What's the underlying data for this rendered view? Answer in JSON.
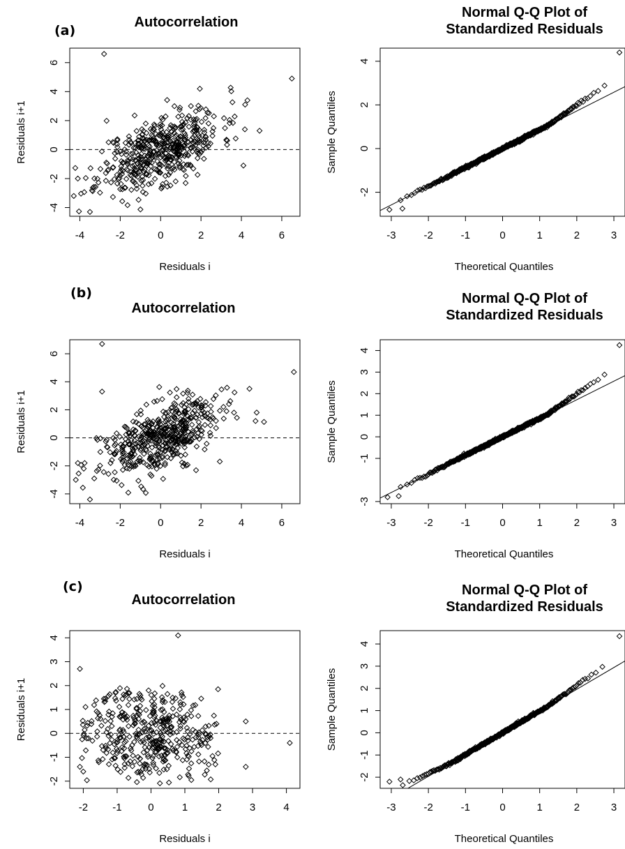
{
  "panels": [
    {
      "label": "(a)"
    },
    {
      "label": "(b)"
    },
    {
      "label": "(c)"
    }
  ],
  "chart_data": [
    {
      "id": "a-autocorrelation",
      "type": "scatter",
      "panel": "(a)",
      "title": "Autocorrelation",
      "xlabel": "Residuals i",
      "ylabel": "Residuals i+1",
      "xlim": [
        -4.5,
        6.9
      ],
      "ylim": [
        -4.6,
        7.0
      ],
      "xticks": [
        -4,
        -2,
        0,
        2,
        4,
        6
      ],
      "yticks": [
        -4,
        -2,
        0,
        2,
        4,
        6
      ],
      "hline": 0,
      "gen": {
        "kind": "autocorr",
        "n": 500,
        "seed": 11,
        "rho": 0.55,
        "sd": 1.5,
        "xmin": -4.3,
        "xmax": 6.6
      },
      "extra_points": [
        [
          -2.8,
          6.6
        ],
        [
          6.5,
          4.9
        ],
        [
          4.9,
          1.3
        ],
        [
          4.3,
          3.4
        ],
        [
          -4.1,
          -2.0
        ],
        [
          -4.3,
          -3.2
        ],
        [
          -3.5,
          -4.3
        ],
        [
          4.1,
          -1.1
        ]
      ]
    },
    {
      "id": "a-qq",
      "type": "scatter",
      "panel": "(a)",
      "title": "Normal Q-Q Plot of Standardized Residuals",
      "xlabel": "Theoretical Quantiles",
      "ylabel": "Sample Quantiles",
      "xlim": [
        -3.3,
        3.3
      ],
      "ylim": [
        -3.1,
        4.6
      ],
      "xticks": [
        -3,
        -2,
        -1,
        0,
        1,
        2,
        3
      ],
      "yticks": [
        -2,
        0,
        2,
        4
      ],
      "refline": {
        "slope": 0.86,
        "intercept": 0.0
      },
      "gen": {
        "kind": "qq",
        "n": 500,
        "seed": 5,
        "tail_low": 1.0,
        "tail_high": 1.0,
        "noise": 0.03
      },
      "extra_points": [
        [
          3.15,
          4.4
        ],
        [
          -3.05,
          -2.8
        ],
        [
          -2.7,
          -2.75
        ]
      ]
    },
    {
      "id": "b-autocorrelation",
      "type": "scatter",
      "panel": "(b)",
      "title": "Autocorrelation",
      "xlabel": "Residuals i",
      "ylabel": "Residuals i+1",
      "xlim": [
        -4.5,
        6.9
      ],
      "ylim": [
        -4.7,
        7.0
      ],
      "xticks": [
        -4,
        -2,
        0,
        2,
        4,
        6
      ],
      "yticks": [
        -4,
        -2,
        0,
        2,
        4,
        6
      ],
      "hline": 0,
      "gen": {
        "kind": "autocorr",
        "n": 500,
        "seed": 23,
        "rho": 0.55,
        "sd": 1.5,
        "xmin": -4.3,
        "xmax": 6.6
      },
      "extra_points": [
        [
          -2.9,
          6.7
        ],
        [
          6.6,
          4.7
        ],
        [
          4.7,
          1.2
        ],
        [
          4.4,
          3.5
        ],
        [
          -4.1,
          -1.8
        ],
        [
          -4.2,
          -3.0
        ],
        [
          -3.5,
          -4.4
        ],
        [
          -2.9,
          3.3
        ]
      ]
    },
    {
      "id": "b-qq",
      "type": "scatter",
      "panel": "(b)",
      "title": "Normal Q-Q Plot of Standardized Residuals",
      "xlabel": "Theoretical Quantiles",
      "ylabel": "Sample Quantiles",
      "xlim": [
        -3.3,
        3.3
      ],
      "ylim": [
        -3.1,
        4.5
      ],
      "xticks": [
        -3,
        -2,
        -1,
        0,
        1,
        2,
        3
      ],
      "yticks": [
        -3,
        -1,
        0,
        1,
        2,
        3,
        4
      ],
      "refline": {
        "slope": 0.86,
        "intercept": 0.0
      },
      "gen": {
        "kind": "qq",
        "n": 500,
        "seed": 9,
        "tail_low": 1.0,
        "tail_high": 1.0,
        "noise": 0.03
      },
      "extra_points": [
        [
          3.15,
          4.25
        ],
        [
          -3.1,
          -2.8
        ],
        [
          -2.8,
          -2.75
        ]
      ]
    },
    {
      "id": "c-autocorrelation",
      "type": "scatter",
      "panel": "(c)",
      "title": "Autocorrelation",
      "xlabel": "Residuals i",
      "ylabel": "Residuals i+1",
      "xlim": [
        -2.4,
        4.4
      ],
      "ylim": [
        -2.3,
        4.3
      ],
      "xticks": [
        -2,
        -1,
        0,
        1,
        2,
        3,
        4
      ],
      "yticks": [
        -2,
        -1,
        0,
        1,
        2,
        3,
        4
      ],
      "hline": 0,
      "gen": {
        "kind": "autocorr",
        "n": 420,
        "seed": 37,
        "rho": 0.0,
        "sd": 0.95,
        "xmin": -2.1,
        "xmax": 2.0
      },
      "extra_points": [
        [
          0.8,
          4.1
        ],
        [
          4.1,
          -0.4
        ],
        [
          2.8,
          0.5
        ],
        [
          2.8,
          -1.4
        ],
        [
          -2.1,
          2.7
        ],
        [
          -2.0,
          -1.6
        ],
        [
          -2.1,
          -1.4
        ]
      ]
    },
    {
      "id": "c-qq",
      "type": "scatter",
      "panel": "(c)",
      "title": "Normal Q-Q Plot of Standardized Residuals",
      "xlabel": "Theoretical Quantiles",
      "ylabel": "Sample Quantiles",
      "xlim": [
        -3.3,
        3.3
      ],
      "ylim": [
        -2.5,
        4.6
      ],
      "xticks": [
        -3,
        -2,
        -1,
        0,
        1,
        2,
        3
      ],
      "yticks": [
        -2,
        -1,
        0,
        1,
        2,
        3,
        4
      ],
      "refline": {
        "slope": 0.98,
        "intercept": 0.0
      },
      "gen": {
        "kind": "qq",
        "n": 420,
        "seed": 13,
        "tail_low": 0.72,
        "tail_high": 1.0,
        "noise": 0.03
      },
      "extra_points": [
        [
          3.15,
          4.35
        ],
        [
          -3.05,
          -2.2
        ],
        [
          -2.75,
          -2.1
        ]
      ]
    }
  ]
}
